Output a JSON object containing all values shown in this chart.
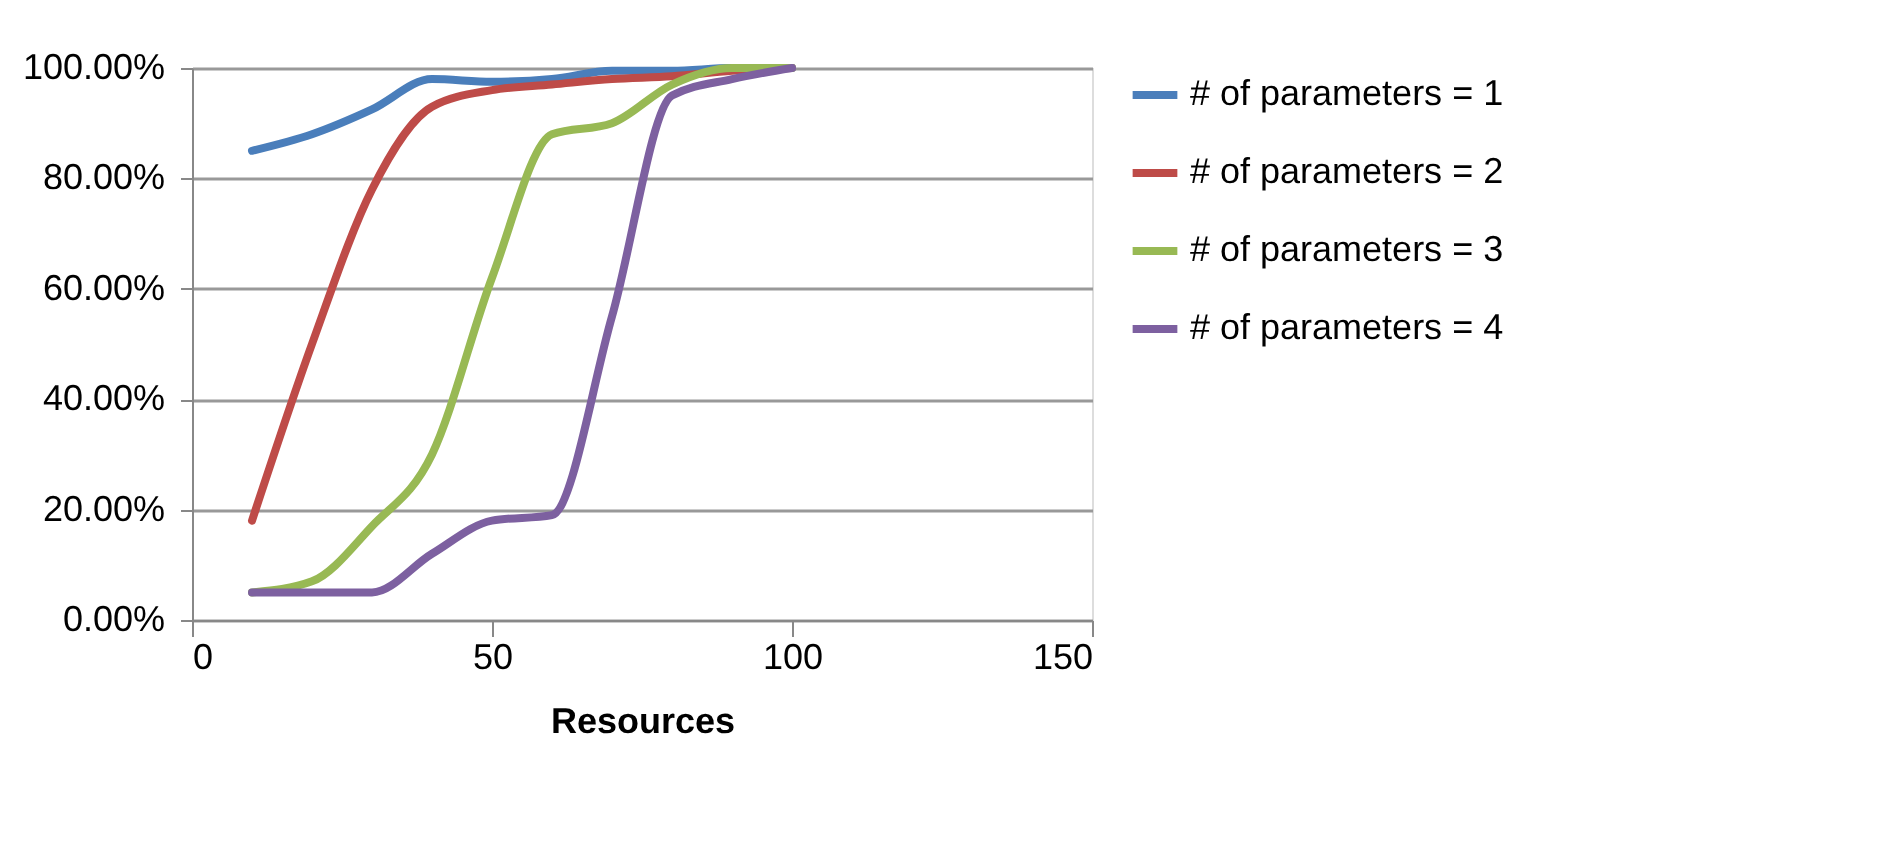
{
  "chart_data": {
    "type": "line",
    "xlabel": "Resources",
    "x": [
      10,
      20,
      30,
      40,
      50,
      60,
      70,
      80,
      90,
      100
    ],
    "series": [
      {
        "name": "# of parameters = 1",
        "color": "#4a7ebb",
        "values": [
          85,
          88,
          92.5,
          98,
          97.5,
          98,
          99.5,
          99.5,
          100,
          100
        ]
      },
      {
        "name": "# of parameters = 2",
        "color": "#be4b48",
        "values": [
          18,
          50,
          78,
          93,
          96,
          97,
          98,
          98.5,
          99.5,
          100
        ]
      },
      {
        "name": "# of parameters = 3",
        "color": "#98b954",
        "values": [
          5,
          7,
          17,
          30,
          62,
          88,
          90,
          97,
          100,
          100
        ]
      },
      {
        "name": "# of parameters = 4",
        "color": "#7d60a0",
        "values": [
          5,
          5,
          5,
          12,
          18,
          19,
          55,
          95,
          98,
          100
        ]
      }
    ],
    "xlim": [
      0,
      150
    ],
    "xticks": [
      0,
      50,
      100,
      150
    ],
    "ylim": [
      0,
      100
    ],
    "yticks": [
      {
        "value": 0,
        "label": "0.00%"
      },
      {
        "value": 20,
        "label": "20.00%"
      },
      {
        "value": 40,
        "label": "40.00%"
      },
      {
        "value": 60,
        "label": "60.00%"
      },
      {
        "value": 80,
        "label": "80.00%"
      },
      {
        "value": 100,
        "label": "100.00%"
      }
    ],
    "grid": "y",
    "legend": "right",
    "marker": "none",
    "line_style": "solid"
  }
}
